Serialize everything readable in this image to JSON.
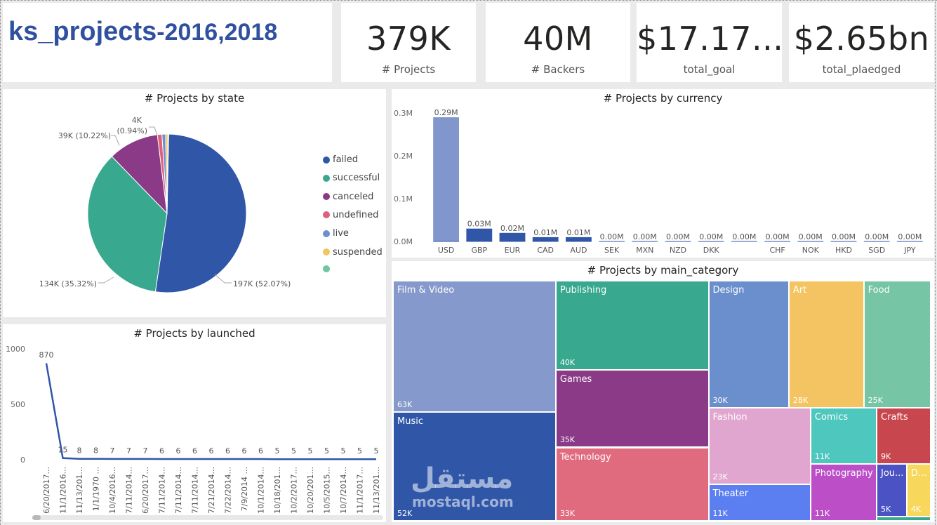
{
  "report": {
    "title_main": "ks_projects",
    "title_suffix": "-2016,2018"
  },
  "kpis": [
    {
      "value": "379K",
      "label": "# Projects"
    },
    {
      "value": "40M",
      "label": "# Backers"
    },
    {
      "value": "$17.17...",
      "label": "total_goal"
    },
    {
      "value": "$2.65bn",
      "label": "total_plaedged"
    }
  ],
  "chart_data": [
    {
      "type": "pie",
      "title": "# Projects by state",
      "categories": [
        "failed",
        "successful",
        "canceled",
        "undefined",
        "live",
        "suspended",
        ""
      ],
      "values": [
        197000,
        134000,
        39000,
        3500,
        2800,
        1800,
        500
      ],
      "percent_labels": [
        "197K (52.07%)",
        "134K (35.32%)",
        "39K (10.22%)",
        "4K",
        "(0.94%)"
      ],
      "colors": [
        "#3056a8",
        "#38a88f",
        "#8a3a86",
        "#e0607a",
        "#6f8fcc",
        "#f3c460",
        "#6fc5a2"
      ],
      "legend_position": "right"
    },
    {
      "type": "bar",
      "title": "# Projects by currency",
      "categories": [
        "USD",
        "GBP",
        "EUR",
        "CAD",
        "AUD",
        "SEK",
        "MXN",
        "NZD",
        "DKK",
        "",
        "CHF",
        "NOK",
        "HKD",
        "SGD",
        "JPY"
      ],
      "values": [
        0.29,
        0.03,
        0.02,
        0.01,
        0.01,
        0.0,
        0.0,
        0.0,
        0.0,
        0.0,
        0.0,
        0.0,
        0.0,
        0.0,
        0.0
      ],
      "value_labels": [
        "0.29M",
        "0.03M",
        "0.02M",
        "0.01M",
        "0.01M",
        "0.00M",
        "0.00M",
        "0.00M",
        "0.00M",
        "0.00M",
        "0.00M",
        "0.00M",
        "0.00M",
        "0.00M",
        "0.00M"
      ],
      "y_ticks": [
        "0.0M",
        "0.1M",
        "0.2M",
        "0.3M"
      ],
      "ylim": [
        0,
        0.3
      ],
      "colors": {
        "highlight": "#8096cc",
        "normal": "#3056a8"
      }
    },
    {
      "type": "line",
      "title": "# Projects by launched",
      "x": [
        "6/20/2017...",
        "11/1/2016...",
        "11/13/201...",
        "1/1/1970 ...",
        "10/4/2016...",
        "7/11/2014...",
        "6/20/2017...",
        "7/11/2014...",
        "7/11/2014...",
        "7/11/2014...",
        "7/21/2014...",
        "7/22/2014...",
        "7/9/2014 ...",
        "10/1/2014...",
        "10/18/201...",
        "10/2/2017...",
        "10/20/201...",
        "10/5/2015...",
        "10/7/2014...",
        "11/1/2017...",
        "11/13/201..."
      ],
      "values": [
        870,
        15,
        8,
        8,
        7,
        7,
        7,
        6,
        6,
        6,
        6,
        6,
        6,
        6,
        5,
        5,
        5,
        5,
        5,
        5,
        5
      ],
      "value_labels": [
        "870",
        "15",
        "8",
        "8",
        "7",
        "7",
        "7",
        "6",
        "6",
        "6",
        "6",
        "6",
        "6",
        "6",
        "5",
        "5",
        "5",
        "5",
        "5",
        "5",
        "5"
      ],
      "y_ticks": [
        "0",
        "500",
        "1000"
      ],
      "ylim": [
        0,
        1000
      ],
      "color": "#3056a8"
    },
    {
      "type": "treemap",
      "title": "# Projects by main_category",
      "categories": [
        "Film & Video",
        "Music",
        "Publishing",
        "Games",
        "Technology",
        "Design",
        "Art",
        "Food",
        "Fashion",
        "Theater",
        "Comics",
        "Photography",
        "Crafts",
        "Jou...",
        "D..."
      ],
      "values": [
        63,
        52,
        40,
        35,
        33,
        30,
        28,
        25,
        23,
        11,
        11,
        11,
        9,
        5,
        4
      ],
      "value_labels": [
        "63K",
        "52K",
        "40K",
        "35K",
        "33K",
        "30K",
        "28K",
        "25K",
        "23K",
        "11K",
        "11K",
        "11K",
        "9K",
        "5K",
        "4K"
      ],
      "colors": [
        "#8599cc",
        "#3056a8",
        "#38a88f",
        "#8a3a86",
        "#e06b7e",
        "#6b8fcc",
        "#f5c462",
        "#76c5a5",
        "#e0a6cf",
        "#5b7ef0",
        "#4ec7be",
        "#bc4fc8",
        "#c8474e",
        "#4b52c4",
        "#f7d85c"
      ]
    }
  ],
  "watermark": {
    "arabic": "مستقل",
    "latin": "mostaql.com"
  }
}
